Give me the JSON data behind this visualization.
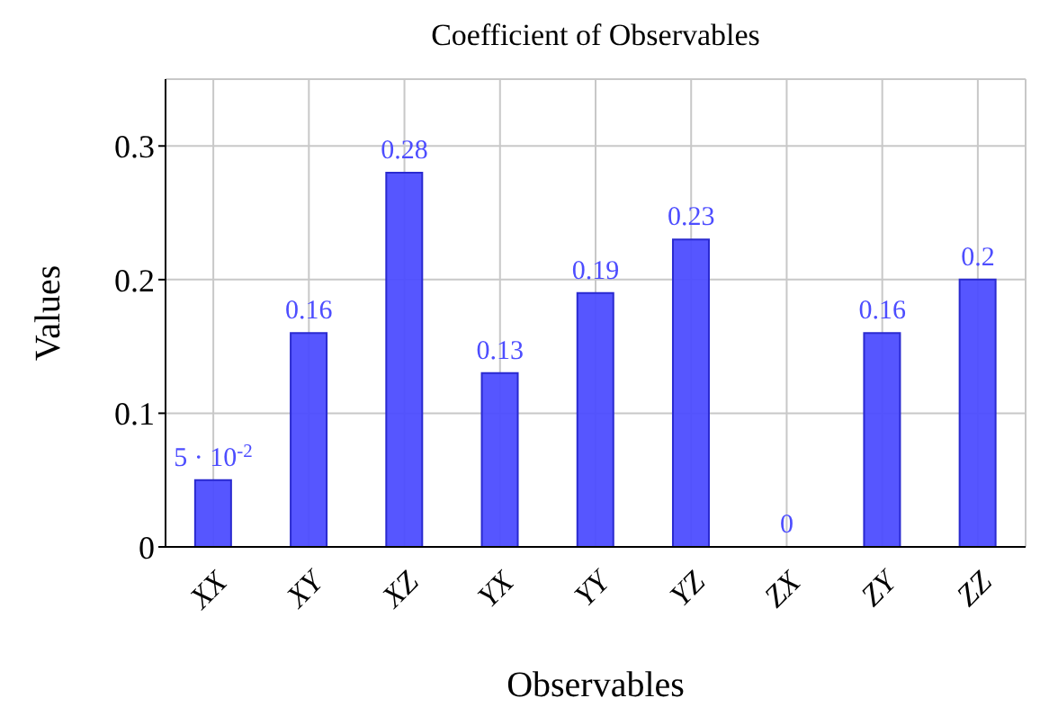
{
  "chart_data": {
    "type": "bar",
    "title": "Coefficient of Observables",
    "xlabel": "Observables",
    "ylabel": "Values",
    "categories": [
      "XX",
      "XY",
      "XZ",
      "YX",
      "YY",
      "YZ",
      "ZX",
      "ZY",
      "ZZ"
    ],
    "values": [
      0.05,
      0.16,
      0.28,
      0.13,
      0.19,
      0.23,
      0,
      0.16,
      0.2
    ],
    "value_labels": [
      "5 · 10$^{-2}$",
      "0.16",
      "0.28",
      "0.13",
      "0.19",
      "0.23",
      "0",
      "0.16",
      "0.2"
    ],
    "color": "#4d4dff",
    "ylim": [
      0,
      0.35
    ],
    "yticks": [
      0,
      0.1,
      0.2,
      0.3
    ],
    "grid": true
  }
}
